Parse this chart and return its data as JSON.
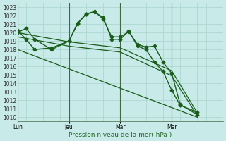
{
  "background_color": "#c8eae8",
  "grid_color": "#a8d4cc",
  "line_color": "#1a5c1a",
  "xlabel": "Pression niveau de la mer( hPa )",
  "ylim": [
    1009.5,
    1023.5
  ],
  "yticks": [
    1010,
    1011,
    1012,
    1013,
    1014,
    1015,
    1016,
    1017,
    1018,
    1019,
    1020,
    1021,
    1022,
    1023
  ],
  "xtick_labels": [
    "Lun",
    "Jeu",
    "Mar",
    "Mer"
  ],
  "xtick_positions": [
    0,
    24,
    48,
    72
  ],
  "xlim": [
    0,
    96
  ],
  "vline_positions": [
    0,
    24,
    48,
    72
  ],
  "series1_x": [
    0,
    4,
    8,
    16,
    24,
    28,
    32,
    36,
    40,
    44,
    48,
    52,
    56,
    60,
    64,
    68,
    72,
    76,
    84
  ],
  "series1_y": [
    1020.0,
    1020.5,
    1019.2,
    1018.0,
    1019.0,
    1021.0,
    1022.2,
    1022.5,
    1021.6,
    1019.5,
    1019.5,
    1020.1,
    1018.6,
    1018.3,
    1018.4,
    1016.5,
    1015.2,
    1011.5,
    1010.3
  ],
  "series2_x": [
    0,
    4,
    8,
    16,
    24,
    28,
    32,
    36,
    40,
    44,
    48,
    52,
    56,
    60,
    64,
    68,
    72,
    76,
    84
  ],
  "series2_y": [
    1020.3,
    1019.2,
    1018.0,
    1018.2,
    1019.0,
    1021.1,
    1022.2,
    1022.4,
    1021.8,
    1019.2,
    1019.2,
    1020.2,
    1018.4,
    1018.0,
    1016.5,
    1015.4,
    1013.2,
    1011.4,
    1010.6
  ],
  "series3_x": [
    0,
    24,
    48,
    72,
    84
  ],
  "series3_y": [
    1020.0,
    1018.9,
    1018.2,
    1015.5,
    1010.5
  ],
  "series4_x": [
    0,
    24,
    48,
    72,
    84
  ],
  "series4_y": [
    1019.5,
    1018.4,
    1017.7,
    1014.9,
    1010.2
  ],
  "series5_x": [
    0,
    84
  ],
  "series5_y": [
    1018.0,
    1010.0
  ]
}
